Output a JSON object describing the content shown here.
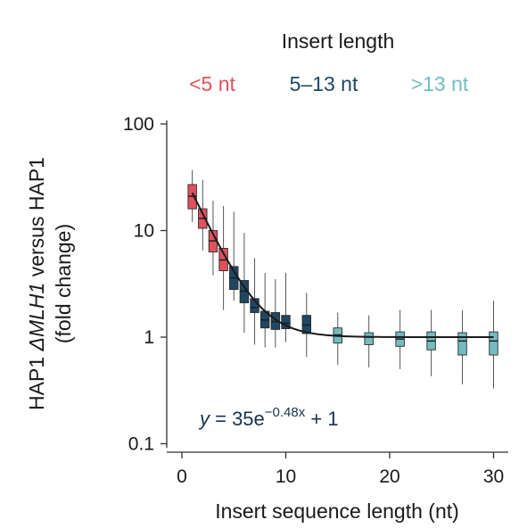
{
  "colors": {
    "short": "#e2515c",
    "mid": "#1e4766",
    "long": "#73bcc2",
    "fit": "#1a1a1a",
    "equation": "#17324f"
  },
  "chart_data": {
    "type": "box",
    "title": "",
    "legend": {
      "title": "Insert length",
      "placement": "top",
      "entries": [
        {
          "label": "<5 nt",
          "color": "#e2515c"
        },
        {
          "label": "5–13 nt",
          "color": "#1e4766"
        },
        {
          "label": ">13 nt",
          "color": "#73bcc2"
        }
      ]
    },
    "xlabel": "Insert sequence length (nt)",
    "ylabel_line1": "HAP1 ΔMLH1 versus HAP1",
    "ylabel_line2": "(fold change)",
    "xlim": [
      -1.5,
      31.5
    ],
    "ylim": [
      0.09,
      130
    ],
    "yscale": "log",
    "xticks": [
      0,
      10,
      20,
      30
    ],
    "xtick_labels": [
      "0",
      "10",
      "20",
      "30"
    ],
    "yticks": [
      0.1,
      1,
      10,
      100
    ],
    "ytick_labels": [
      "0.1",
      "1",
      "10",
      "100"
    ],
    "grid": false,
    "equation": {
      "lhs": "y",
      "eq": " = 35e",
      "exp": "−0.48x",
      "rhs": " + 1"
    },
    "fit": {
      "a": 35,
      "b": 0.48,
      "c": 1,
      "x_range": [
        1,
        30
      ]
    },
    "series": [
      {
        "group": "short",
        "boxes": [
          {
            "x": 1,
            "whislo": 12,
            "q1": 16,
            "med": 21,
            "q3": 27,
            "whishi": 37
          },
          {
            "x": 2,
            "whislo": 6.5,
            "q1": 10.5,
            "med": 13,
            "q3": 16,
            "whishi": 30
          },
          {
            "x": 3,
            "whislo": 3.8,
            "q1": 6.3,
            "med": 8,
            "q3": 10,
            "whishi": 19
          },
          {
            "x": 4,
            "whislo": 1.8,
            "q1": 4.2,
            "med": 5.3,
            "q3": 6.8,
            "whishi": 17
          }
        ]
      },
      {
        "group": "mid",
        "boxes": [
          {
            "x": 5,
            "whislo": 2.2,
            "q1": 2.8,
            "med": 3.6,
            "q3": 4.6,
            "whishi": 15
          },
          {
            "x": 6,
            "whislo": 1.1,
            "q1": 2.1,
            "med": 2.7,
            "q3": 3.4,
            "whishi": 9.5
          },
          {
            "x": 7,
            "whislo": 0.85,
            "q1": 1.7,
            "med": 1.9,
            "q3": 2.3,
            "whishi": 5.5
          },
          {
            "x": 8,
            "whislo": 0.8,
            "q1": 1.22,
            "med": 1.45,
            "q3": 1.75,
            "whishi": 4
          },
          {
            "x": 9,
            "whislo": 0.8,
            "q1": 1.18,
            "med": 1.4,
            "q3": 1.7,
            "whishi": 3.5
          },
          {
            "x": 10,
            "whislo": 0.9,
            "q1": 1.2,
            "med": 1.35,
            "q3": 1.6,
            "whishi": 4
          },
          {
            "x": 12,
            "whislo": 0.65,
            "q1": 1.08,
            "med": 1.3,
            "q3": 1.6,
            "whishi": 2.6
          }
        ]
      },
      {
        "group": "long",
        "boxes": [
          {
            "x": 15,
            "whislo": 0.55,
            "q1": 0.88,
            "med": 1.05,
            "q3": 1.22,
            "whishi": 1.7
          },
          {
            "x": 18,
            "whislo": 0.52,
            "q1": 0.85,
            "med": 1.0,
            "q3": 1.1,
            "whishi": 1.6
          },
          {
            "x": 21,
            "whislo": 0.5,
            "q1": 0.82,
            "med": 0.96,
            "q3": 1.12,
            "whishi": 1.8
          },
          {
            "x": 24,
            "whislo": 0.43,
            "q1": 0.76,
            "med": 0.92,
            "q3": 1.12,
            "whishi": 1.8
          },
          {
            "x": 27,
            "whislo": 0.36,
            "q1": 0.68,
            "med": 0.92,
            "q3": 1.1,
            "whishi": 1.8
          },
          {
            "x": 30,
            "whislo": 0.33,
            "q1": 0.68,
            "med": 0.92,
            "q3": 1.12,
            "whishi": 2.2
          }
        ]
      }
    ]
  }
}
